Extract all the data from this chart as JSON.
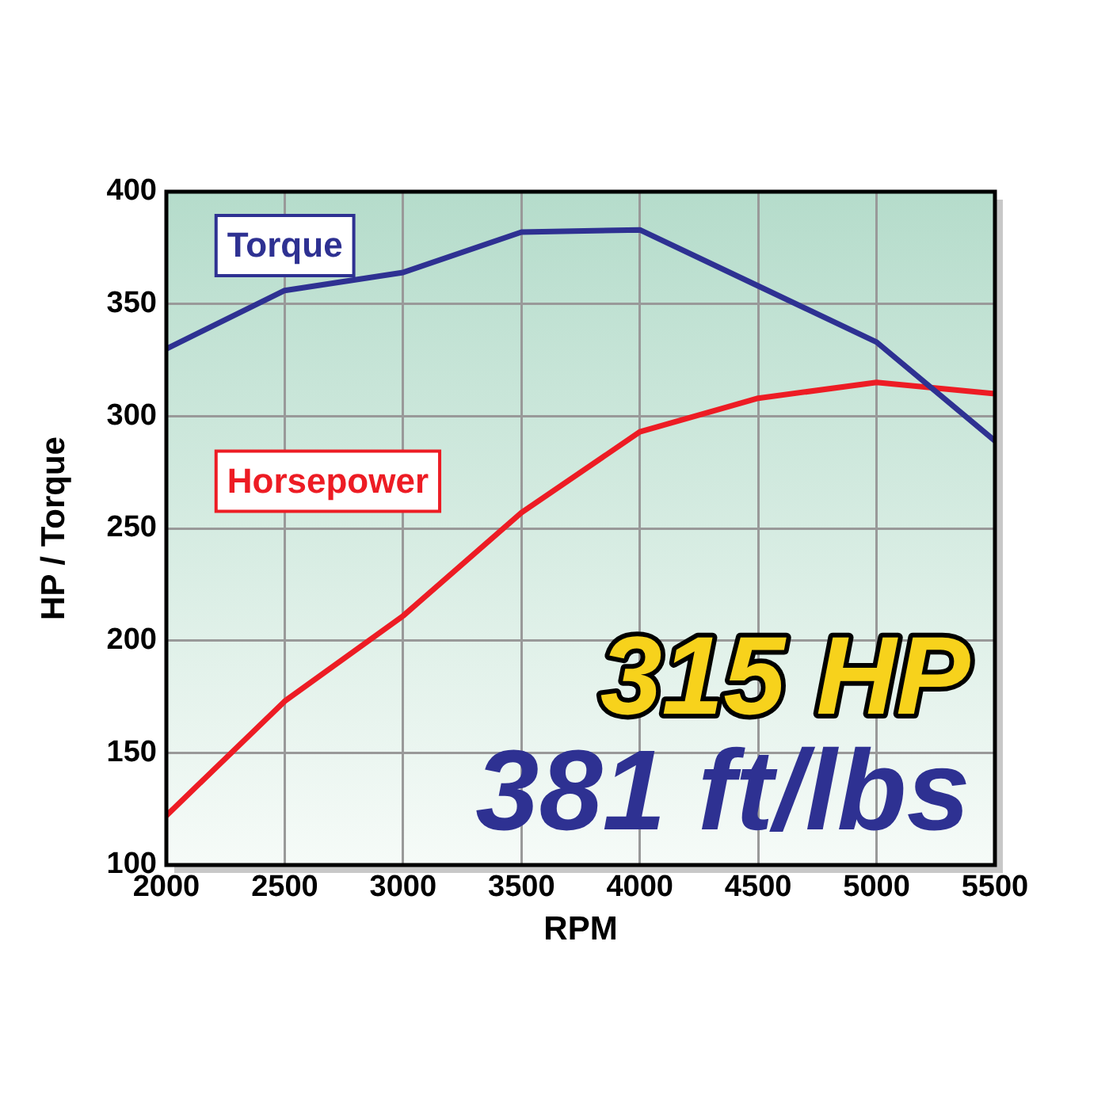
{
  "chart_data": {
    "type": "line",
    "xlabel": "RPM",
    "ylabel": "HP / Torque",
    "x": [
      2000,
      2500,
      3000,
      3500,
      4000,
      4500,
      5000,
      5500
    ],
    "series": [
      {
        "name": "Torque",
        "color": "#2e3192",
        "values": [
          330,
          356,
          364,
          382,
          383,
          358,
          333,
          289
        ]
      },
      {
        "name": "Horsepower",
        "color": "#ed1c24",
        "values": [
          122,
          173,
          211,
          257,
          293,
          308,
          315,
          310
        ]
      }
    ],
    "xlim": [
      2000,
      5500
    ],
    "xticks": [
      2000,
      2500,
      3000,
      3500,
      4000,
      4500,
      5000,
      5500
    ],
    "ylim": [
      100,
      400
    ],
    "yticks": [
      100,
      150,
      200,
      250,
      300,
      350,
      400
    ],
    "grid": true,
    "legend": false,
    "marker": "none",
    "line_style": "solid",
    "annotations": [
      "315 HP",
      "381 ft/lbs"
    ]
  }
}
